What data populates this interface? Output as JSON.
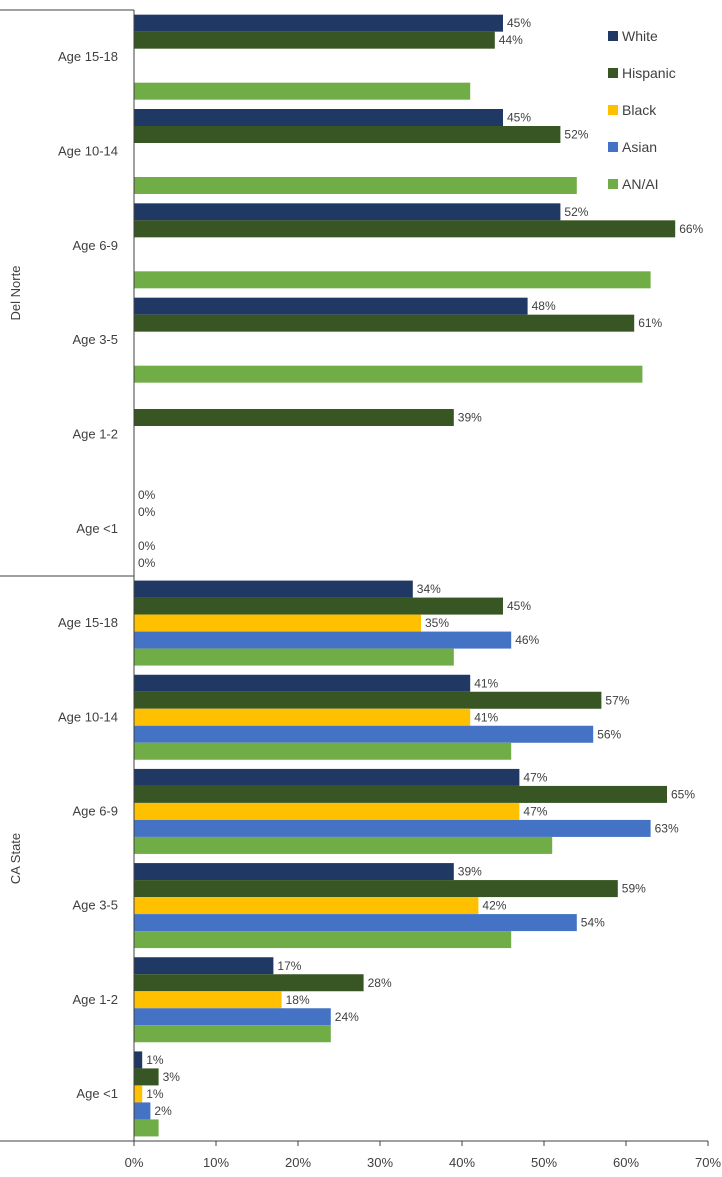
{
  "chart_data": {
    "type": "bar",
    "orientation": "horizontal",
    "xlim": [
      0,
      70
    ],
    "xticks": [
      "0%",
      "10%",
      "20%",
      "30%",
      "40%",
      "50%",
      "60%",
      "70%"
    ],
    "xtick_values": [
      0,
      10,
      20,
      30,
      40,
      50,
      60,
      70
    ],
    "grid": false,
    "legend_position": "top-right",
    "series": [
      {
        "name": "White",
        "color": "#203864"
      },
      {
        "name": "Hispanic",
        "color": "#375623"
      },
      {
        "name": "Black",
        "color": "#FFC000"
      },
      {
        "name": "Asian",
        "color": "#4472C4"
      },
      {
        "name": "AN/AI",
        "color": "#70AD47"
      }
    ],
    "groups": [
      {
        "name": "Del Norte",
        "categories": [
          {
            "label": "Age 15-18",
            "bars": [
              {
                "series": "White",
                "value": 45,
                "label": "45%"
              },
              {
                "series": "Hispanic",
                "value": 44,
                "label": "44%"
              },
              {
                "series": "Black",
                "value": null,
                "label": ""
              },
              {
                "series": "Asian",
                "value": null,
                "label": ""
              },
              {
                "series": "AN/AI",
                "value": 41,
                "label": ""
              }
            ]
          },
          {
            "label": "Age 10-14",
            "bars": [
              {
                "series": "White",
                "value": 45,
                "label": "45%"
              },
              {
                "series": "Hispanic",
                "value": 52,
                "label": "52%"
              },
              {
                "series": "Black",
                "value": null,
                "label": ""
              },
              {
                "series": "Asian",
                "value": null,
                "label": ""
              },
              {
                "series": "AN/AI",
                "value": 54,
                "label": ""
              }
            ]
          },
          {
            "label": "Age 6-9",
            "bars": [
              {
                "series": "White",
                "value": 52,
                "label": "52%"
              },
              {
                "series": "Hispanic",
                "value": 66,
                "label": "66%"
              },
              {
                "series": "Black",
                "value": null,
                "label": ""
              },
              {
                "series": "Asian",
                "value": null,
                "label": ""
              },
              {
                "series": "AN/AI",
                "value": 63,
                "label": ""
              }
            ]
          },
          {
            "label": "Age 3-5",
            "bars": [
              {
                "series": "White",
                "value": 48,
                "label": "48%"
              },
              {
                "series": "Hispanic",
                "value": 61,
                "label": "61%"
              },
              {
                "series": "Black",
                "value": null,
                "label": ""
              },
              {
                "series": "Asian",
                "value": null,
                "label": ""
              },
              {
                "series": "AN/AI",
                "value": 62,
                "label": ""
              }
            ]
          },
          {
            "label": "Age 1-2",
            "bars": [
              {
                "series": "White",
                "value": null,
                "label": ""
              },
              {
                "series": "Hispanic",
                "value": 39,
                "label": "39%"
              },
              {
                "series": "Black",
                "value": null,
                "label": ""
              },
              {
                "series": "Asian",
                "value": null,
                "label": ""
              },
              {
                "series": "AN/AI",
                "value": null,
                "label": ""
              }
            ]
          },
          {
            "label": "Age <1",
            "bars": [
              {
                "series": "White",
                "value": 0,
                "label": "0%"
              },
              {
                "series": "Hispanic",
                "value": 0,
                "label": "0%"
              },
              {
                "series": "Black",
                "value": null,
                "label": ""
              },
              {
                "series": "Asian",
                "value": 0,
                "label": "0%"
              },
              {
                "series": "AN/AI",
                "value": 0,
                "label": "0%"
              }
            ]
          }
        ]
      },
      {
        "name": "CA State",
        "categories": [
          {
            "label": "Age 15-18",
            "bars": [
              {
                "series": "White",
                "value": 34,
                "label": "34%"
              },
              {
                "series": "Hispanic",
                "value": 45,
                "label": "45%"
              },
              {
                "series": "Black",
                "value": 35,
                "label": "35%"
              },
              {
                "series": "Asian",
                "value": 46,
                "label": "46%"
              },
              {
                "series": "AN/AI",
                "value": 39,
                "label": ""
              }
            ]
          },
          {
            "label": "Age 10-14",
            "bars": [
              {
                "series": "White",
                "value": 41,
                "label": "41%"
              },
              {
                "series": "Hispanic",
                "value": 57,
                "label": "57%"
              },
              {
                "series": "Black",
                "value": 41,
                "label": "41%"
              },
              {
                "series": "Asian",
                "value": 56,
                "label": "56%"
              },
              {
                "series": "AN/AI",
                "value": 46,
                "label": ""
              }
            ]
          },
          {
            "label": "Age 6-9",
            "bars": [
              {
                "series": "White",
                "value": 47,
                "label": "47%"
              },
              {
                "series": "Hispanic",
                "value": 65,
                "label": "65%"
              },
              {
                "series": "Black",
                "value": 47,
                "label": "47%"
              },
              {
                "series": "Asian",
                "value": 63,
                "label": "63%"
              },
              {
                "series": "AN/AI",
                "value": 51,
                "label": ""
              }
            ]
          },
          {
            "label": "Age 3-5",
            "bars": [
              {
                "series": "White",
                "value": 39,
                "label": "39%"
              },
              {
                "series": "Hispanic",
                "value": 59,
                "label": "59%"
              },
              {
                "series": "Black",
                "value": 42,
                "label": "42%"
              },
              {
                "series": "Asian",
                "value": 54,
                "label": "54%"
              },
              {
                "series": "AN/AI",
                "value": 46,
                "label": ""
              }
            ]
          },
          {
            "label": "Age 1-2",
            "bars": [
              {
                "series": "White",
                "value": 17,
                "label": "17%"
              },
              {
                "series": "Hispanic",
                "value": 28,
                "label": "28%"
              },
              {
                "series": "Black",
                "value": 18,
                "label": "18%"
              },
              {
                "series": "Asian",
                "value": 24,
                "label": "24%"
              },
              {
                "series": "AN/AI",
                "value": 24,
                "label": ""
              }
            ]
          },
          {
            "label": "Age <1",
            "bars": [
              {
                "series": "White",
                "value": 1,
                "label": "1%"
              },
              {
                "series": "Hispanic",
                "value": 3,
                "label": "3%"
              },
              {
                "series": "Black",
                "value": 1,
                "label": "1%"
              },
              {
                "series": "Asian",
                "value": 2,
                "label": "2%"
              },
              {
                "series": "AN/AI",
                "value": 3,
                "label": ""
              }
            ]
          }
        ]
      }
    ]
  }
}
